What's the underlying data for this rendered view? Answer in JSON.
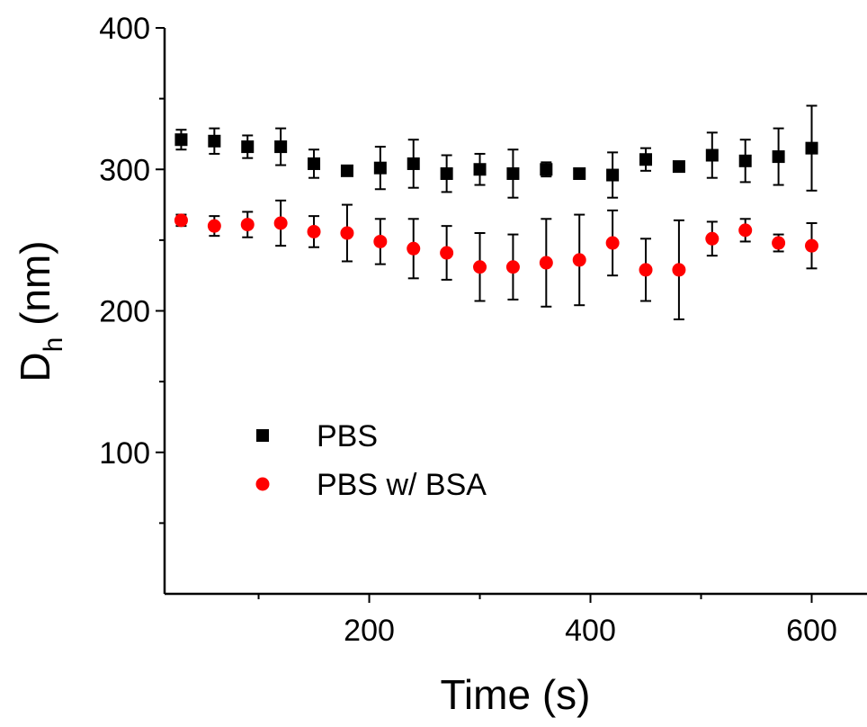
{
  "chart_data": {
    "type": "scatter",
    "xlabel": "Time (s)",
    "ylabel_main": "D",
    "ylabel_sub": "h",
    "ylabel_unit": " (nm)",
    "xlim": [
      15,
      650
    ],
    "ylim": [
      0,
      400
    ],
    "x_ticks": [
      200,
      400,
      600
    ],
    "x_tick_labels": [
      "200",
      "400",
      "600"
    ],
    "x_minor_ticks": [
      100,
      300,
      500
    ],
    "y_ticks": [
      100,
      200,
      300,
      400
    ],
    "y_tick_labels": [
      "100",
      "200",
      "300",
      "400"
    ],
    "y_minor_ticks": [
      50,
      150,
      250,
      350
    ],
    "grid": false,
    "legend_position": "lower-left",
    "x": [
      30,
      60,
      90,
      120,
      150,
      180,
      210,
      240,
      270,
      300,
      330,
      360,
      390,
      420,
      450,
      480,
      510,
      540,
      570,
      600
    ],
    "series": [
      {
        "name": "PBS",
        "marker": "square",
        "color": "#000000",
        "values": [
          321,
          320,
          316,
          316,
          304,
          299,
          301,
          304,
          297,
          300,
          297,
          300,
          297,
          296,
          307,
          302,
          310,
          306,
          309,
          315
        ],
        "errors": [
          7,
          9,
          8,
          13,
          10,
          1,
          15,
          17,
          13,
          11,
          17,
          5,
          1,
          16,
          8,
          1,
          16,
          15,
          20,
          30
        ]
      },
      {
        "name": "PBS w/ BSA",
        "marker": "circle",
        "color": "#ff0000",
        "values": [
          264,
          260,
          261,
          262,
          256,
          255,
          249,
          244,
          241,
          231,
          231,
          234,
          236,
          248,
          229,
          229,
          251,
          257,
          248,
          246
        ],
        "errors": [
          4,
          7,
          9,
          16,
          11,
          20,
          16,
          21,
          19,
          24,
          23,
          31,
          32,
          23,
          22,
          35,
          12,
          8,
          6,
          16
        ]
      }
    ]
  }
}
